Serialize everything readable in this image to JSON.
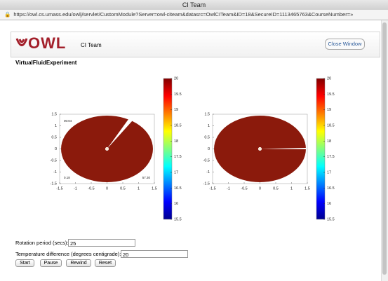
{
  "window": {
    "title": "CI Team",
    "url": "https://owl.cs.umass.edu/owlj/servlet/CustomModule?Server=owl-citeam&datasrc=OwlCITeam&ID=18&SecureID=1113465763&CourseNumber=»"
  },
  "header": {
    "logo": "OWL",
    "course": "CI Team",
    "close_button": "Close Window"
  },
  "experiment": {
    "title": "VirtualFluidExperiment",
    "plots": [
      {
        "xticks": [
          -1.5,
          -1,
          -0.5,
          0,
          0.5,
          1,
          1.5
        ],
        "yticks": [
          -1.5,
          -1,
          -0.5,
          0,
          0.5,
          1,
          1.5
        ],
        "annotations": [
          "00:04",
          "0.18",
          "57.30"
        ],
        "colorbar_ticks": [
          15.5,
          16,
          16.5,
          17,
          17.5,
          18,
          18.5,
          19,
          19.5,
          20
        ]
      },
      {
        "xticks": [
          -1.5,
          -1,
          -0.5,
          0,
          0.5,
          1,
          1.5
        ],
        "yticks": [
          -1.5,
          -1,
          -0.5,
          0,
          0.5,
          1,
          1.5
        ],
        "colorbar_ticks": [
          15.5,
          16,
          16.5,
          17,
          17.5,
          18,
          18.5,
          19,
          19.5,
          20
        ]
      }
    ]
  },
  "form": {
    "fields": [
      {
        "label": "Rotation period (secs):",
        "value": "25"
      },
      {
        "label": "Temperature difference (degrees centigrade):",
        "value": "20"
      }
    ],
    "buttons": [
      "Start",
      "Pause",
      "Rewind",
      "Reset"
    ]
  }
}
